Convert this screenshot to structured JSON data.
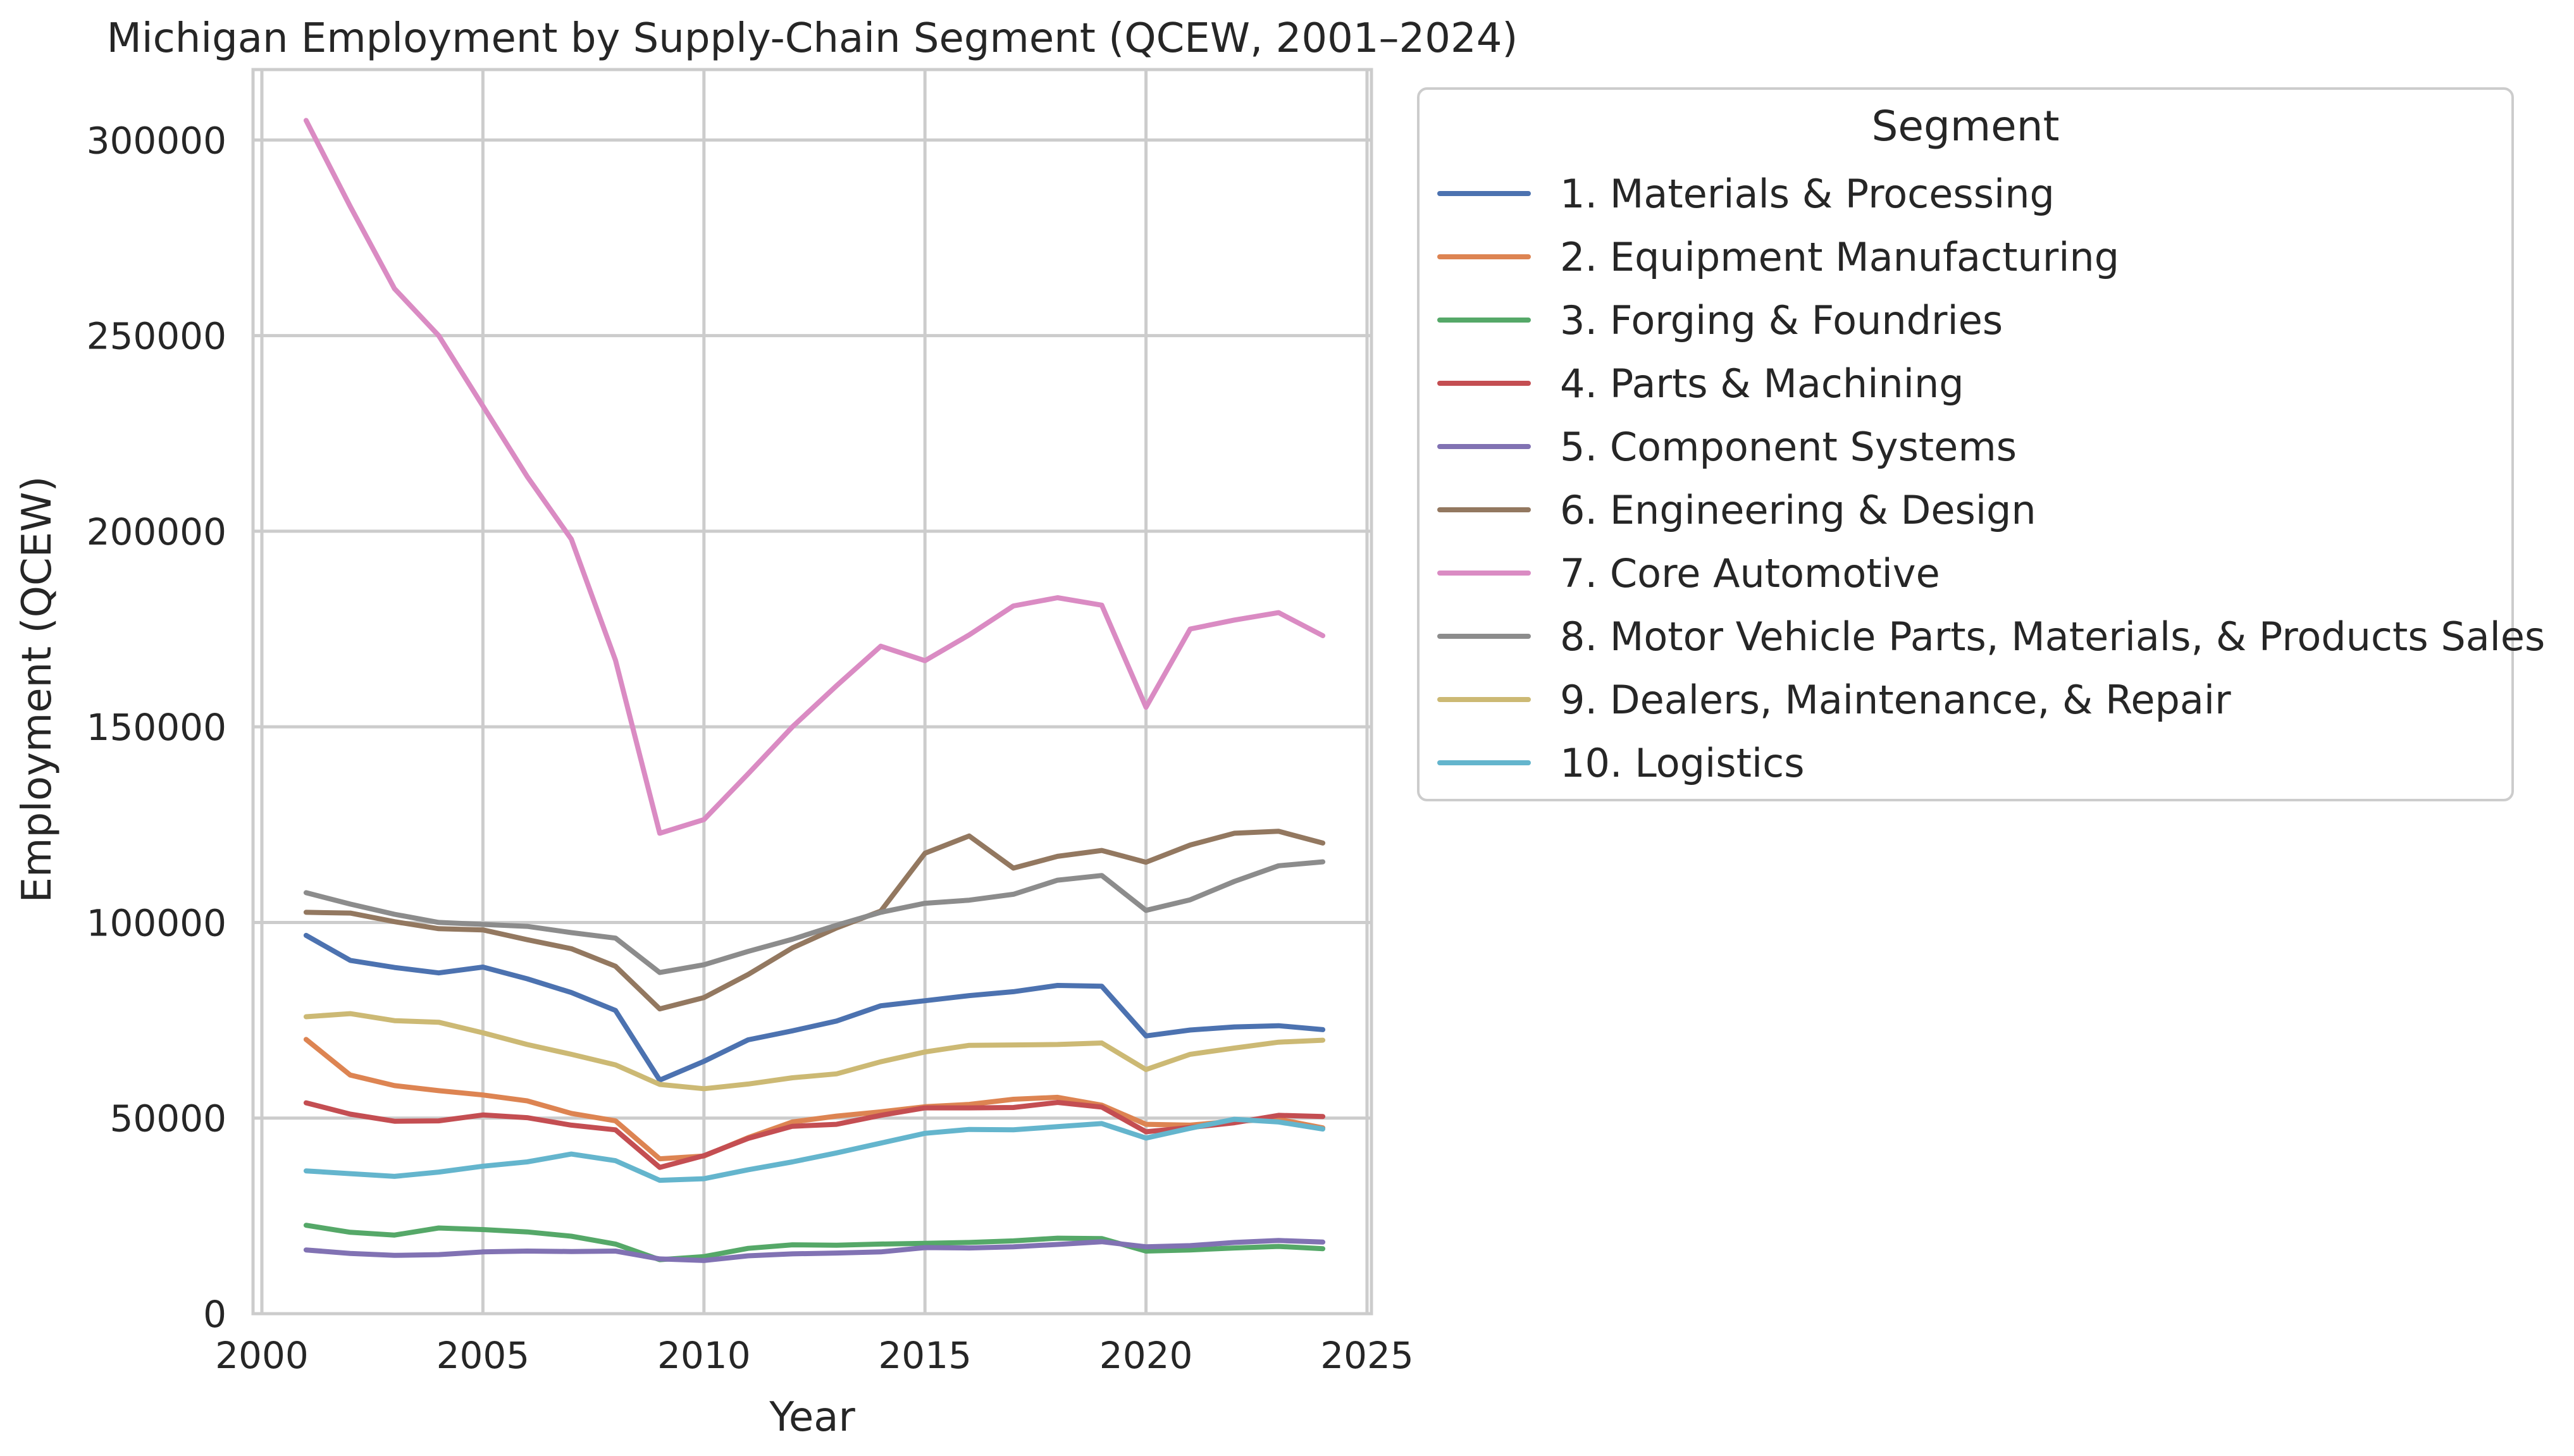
{
  "chart_data": {
    "type": "line",
    "title": "Michigan Employment by Supply-Chain Segment (QCEW, 2001–2024)",
    "xlabel": "Year",
    "ylabel": "Employment (QCEW)",
    "xlim": [
      1999.8,
      2025.1
    ],
    "ylim": [
      0,
      318000
    ],
    "x_ticks": [
      2000,
      2005,
      2010,
      2015,
      2020,
      2025
    ],
    "y_ticks": [
      0,
      50000,
      100000,
      150000,
      200000,
      250000,
      300000
    ],
    "grid": true,
    "legend": {
      "title": "Segment",
      "placement": "outside-right"
    },
    "x": [
      2001,
      2002,
      2003,
      2004,
      2005,
      2006,
      2007,
      2008,
      2009,
      2010,
      2011,
      2012,
      2013,
      2014,
      2015,
      2016,
      2017,
      2018,
      2019,
      2020,
      2021,
      2022,
      2023,
      2024
    ],
    "series": [
      {
        "name": "1. Materials & Processing",
        "color": "#4c72b0",
        "values": [
          96700,
          90300,
          88500,
          87100,
          88600,
          85600,
          82100,
          77500,
          59700,
          64500,
          70000,
          72300,
          74800,
          78700,
          80000,
          81300,
          82300,
          83900,
          83700,
          71000,
          72500,
          73300,
          73600,
          72600
        ]
      },
      {
        "name": "2. Equipment Manufacturing",
        "color": "#dd8452",
        "values": [
          70100,
          61000,
          58300,
          57000,
          55900,
          54400,
          51200,
          49300,
          39600,
          40300,
          45000,
          49000,
          50500,
          51600,
          52900,
          53500,
          54800,
          55300,
          53300,
          48400,
          48200,
          49200,
          49700,
          47500
        ]
      },
      {
        "name": "3. Forging & Foundries",
        "color": "#55a868",
        "values": [
          22600,
          20800,
          20100,
          21900,
          21500,
          20900,
          19800,
          17800,
          13800,
          14600,
          16700,
          17600,
          17500,
          17800,
          18000,
          18200,
          18600,
          19300,
          19200,
          16000,
          16300,
          16800,
          17200,
          16600
        ]
      },
      {
        "name": "4. Parts & Machining",
        "color": "#c44e52",
        "values": [
          53900,
          51000,
          49200,
          49300,
          50800,
          50100,
          48200,
          47000,
          37400,
          40400,
          44800,
          47900,
          48400,
          50700,
          52600,
          52600,
          52700,
          54000,
          52800,
          46500,
          47600,
          48800,
          50700,
          50400
        ]
      },
      {
        "name": "5. Component Systems",
        "color": "#8172b3",
        "values": [
          16300,
          15400,
          14900,
          15100,
          15800,
          16000,
          15900,
          16000,
          14000,
          13600,
          14800,
          15300,
          15500,
          15800,
          16900,
          16800,
          17100,
          17700,
          18400,
          17100,
          17400,
          18200,
          18700,
          18300
        ]
      },
      {
        "name": "6. Engineering & Design",
        "color": "#937860",
        "values": [
          102600,
          102400,
          100200,
          98400,
          98100,
          95600,
          93300,
          88800,
          77900,
          80800,
          86700,
          93500,
          98600,
          102900,
          117700,
          122100,
          113900,
          116900,
          118400,
          115400,
          119800,
          122800,
          123300,
          120300
        ]
      },
      {
        "name": "7. Core Automotive",
        "color": "#da8bc3",
        "values": [
          305000,
          283000,
          262000,
          250000,
          232000,
          214000,
          198000,
          167000,
          122800,
          126300,
          138000,
          150000,
          160500,
          170600,
          166900,
          173500,
          180900,
          183000,
          181100,
          155000,
          175000,
          177300,
          179200,
          173300
        ]
      },
      {
        "name": "8. Motor Vehicle Parts, Materials, & Products Sales",
        "color": "#8c8c8c",
        "values": [
          107600,
          104700,
          102100,
          100000,
          99500,
          99000,
          97400,
          96000,
          87200,
          89200,
          92600,
          95700,
          99300,
          102600,
          104900,
          105700,
          107200,
          110800,
          112000,
          103100,
          105800,
          110500,
          114500,
          115500
        ]
      },
      {
        "name": "9. Dealers, Maintenance, & Repair",
        "color": "#ccb974",
        "values": [
          75900,
          76700,
          74900,
          74500,
          71800,
          68800,
          66300,
          63600,
          58600,
          57500,
          58700,
          60300,
          61300,
          64400,
          66900,
          68600,
          68700,
          68800,
          69200,
          62400,
          66300,
          67900,
          69400,
          69900
        ]
      },
      {
        "name": "10. Logistics",
        "color": "#64b5cd",
        "values": [
          36500,
          35800,
          35100,
          36200,
          37700,
          38800,
          40800,
          39100,
          34100,
          34500,
          36800,
          38800,
          41100,
          43600,
          46100,
          47100,
          47000,
          47800,
          48600,
          44900,
          47400,
          49700,
          49000,
          47200
        ]
      }
    ]
  }
}
